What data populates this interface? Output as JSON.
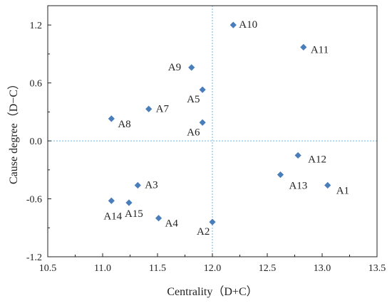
{
  "chart_data": {
    "type": "scatter",
    "title": "",
    "xlabel": "Centrality（D+C）",
    "ylabel": "Cause degree（D−C）",
    "xlim": [
      10.5,
      13.5
    ],
    "ylim": [
      -1.2,
      1.4
    ],
    "x_ticks": [
      10.5,
      11.0,
      11.5,
      12.0,
      12.5,
      13.0,
      13.5
    ],
    "x_tick_labels": [
      "10.5",
      "11.0",
      "11.5",
      "12.0",
      "12.5",
      "13.0",
      "13.5"
    ],
    "y_ticks": [
      -1.2,
      -0.6,
      0.0,
      0.6,
      1.2
    ],
    "y_tick_labels": [
      "-1.2",
      "-0.6",
      "0.0",
      "0.6",
      "1.2"
    ],
    "reference_lines": {
      "x": 12.0,
      "y": 0.0
    },
    "marker": "diamond",
    "color": "#4a7ebb",
    "ref_line_color": "#6cb8e6",
    "grid": false,
    "legend": false,
    "points": [
      {
        "label": "A1",
        "x": 13.05,
        "y": -0.46
      },
      {
        "label": "A2",
        "x": 12.0,
        "y": -0.84
      },
      {
        "label": "A3",
        "x": 11.32,
        "y": -0.46
      },
      {
        "label": "A4",
        "x": 11.51,
        "y": -0.8
      },
      {
        "label": "A5",
        "x": 11.91,
        "y": 0.53
      },
      {
        "label": "A6",
        "x": 11.91,
        "y": 0.19
      },
      {
        "label": "A7",
        "x": 11.42,
        "y": 0.33
      },
      {
        "label": "A8",
        "x": 11.08,
        "y": 0.23
      },
      {
        "label": "A9",
        "x": 11.81,
        "y": 0.76
      },
      {
        "label": "A10",
        "x": 12.19,
        "y": 1.2
      },
      {
        "label": "A11",
        "x": 12.83,
        "y": 0.97
      },
      {
        "label": "A12",
        "x": 12.78,
        "y": -0.15
      },
      {
        "label": "A13",
        "x": 12.62,
        "y": -0.35
      },
      {
        "label": "A14",
        "x": 11.08,
        "y": -0.62
      },
      {
        "label": "A15",
        "x": 11.24,
        "y": -0.64
      }
    ]
  }
}
